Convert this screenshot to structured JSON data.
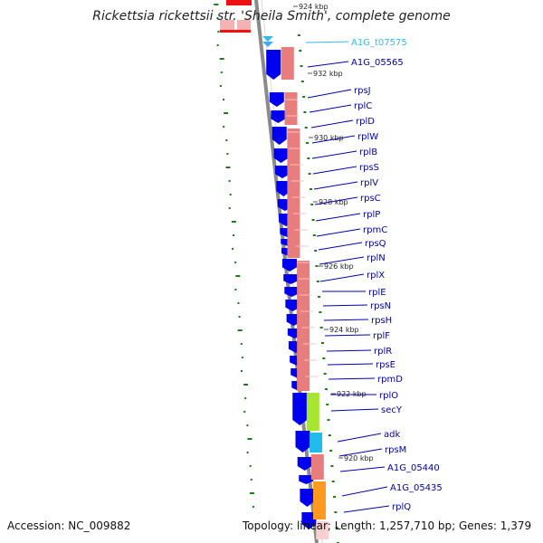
{
  "title": "Rickettsia rickettsii str. 'Sheila Smith', complete genome",
  "accession": "Accession: NC_009882",
  "summary": "Topology: linear; Length: 1,257,710 bp; Genes: 1,379",
  "colors": {
    "cds_blue": "#0000ee",
    "trna_cyan": "#33bbee",
    "gene_pink": "#e77d7d",
    "highlight_green": "#a6e630",
    "highlight_cyan": "#22bbee",
    "highlight_orange": "#ff9a1f",
    "tick_green": "#1f7a1f",
    "label_blue": "#0000aa",
    "label_cyan": "#33bbee",
    "backbone_grey": "#8a8a8a"
  },
  "scale_labels": [
    "924 kbp",
    "932 kbp",
    "930 kbp",
    "928 kbp",
    "926 kbp",
    "924 kbp",
    "922 kbp",
    "920 kbp"
  ],
  "gene_labels": [
    {
      "text": "A1G_t07575",
      "color": "cyan"
    },
    {
      "text": "A1G_05565",
      "color": "blue"
    },
    {
      "text": "rpsJ",
      "color": "blue"
    },
    {
      "text": "rplC",
      "color": "blue"
    },
    {
      "text": "rplD",
      "color": "blue"
    },
    {
      "text": "rplW",
      "color": "blue"
    },
    {
      "text": "rplB",
      "color": "blue"
    },
    {
      "text": "rpsS",
      "color": "blue"
    },
    {
      "text": "rplV",
      "color": "blue"
    },
    {
      "text": "rpsC",
      "color": "blue"
    },
    {
      "text": "rplP",
      "color": "blue"
    },
    {
      "text": "rpmC",
      "color": "blue"
    },
    {
      "text": "rpsQ",
      "color": "blue"
    },
    {
      "text": "rplN",
      "color": "blue"
    },
    {
      "text": "rplX",
      "color": "blue"
    },
    {
      "text": "rplE",
      "color": "blue"
    },
    {
      "text": "rpsN",
      "color": "blue"
    },
    {
      "text": "rpsH",
      "color": "blue"
    },
    {
      "text": "rplF",
      "color": "blue"
    },
    {
      "text": "rplR",
      "color": "blue"
    },
    {
      "text": "rpsE",
      "color": "blue"
    },
    {
      "text": "rpmD",
      "color": "blue"
    },
    {
      "text": "rplO",
      "color": "blue"
    },
    {
      "text": "secY",
      "color": "blue"
    },
    {
      "text": "adk",
      "color": "blue"
    },
    {
      "text": "rpsM",
      "color": "blue"
    },
    {
      "text": "A1G_05440",
      "color": "blue"
    },
    {
      "text": "A1G_05435",
      "color": "blue"
    },
    {
      "text": "rplQ",
      "color": "blue"
    }
  ]
}
